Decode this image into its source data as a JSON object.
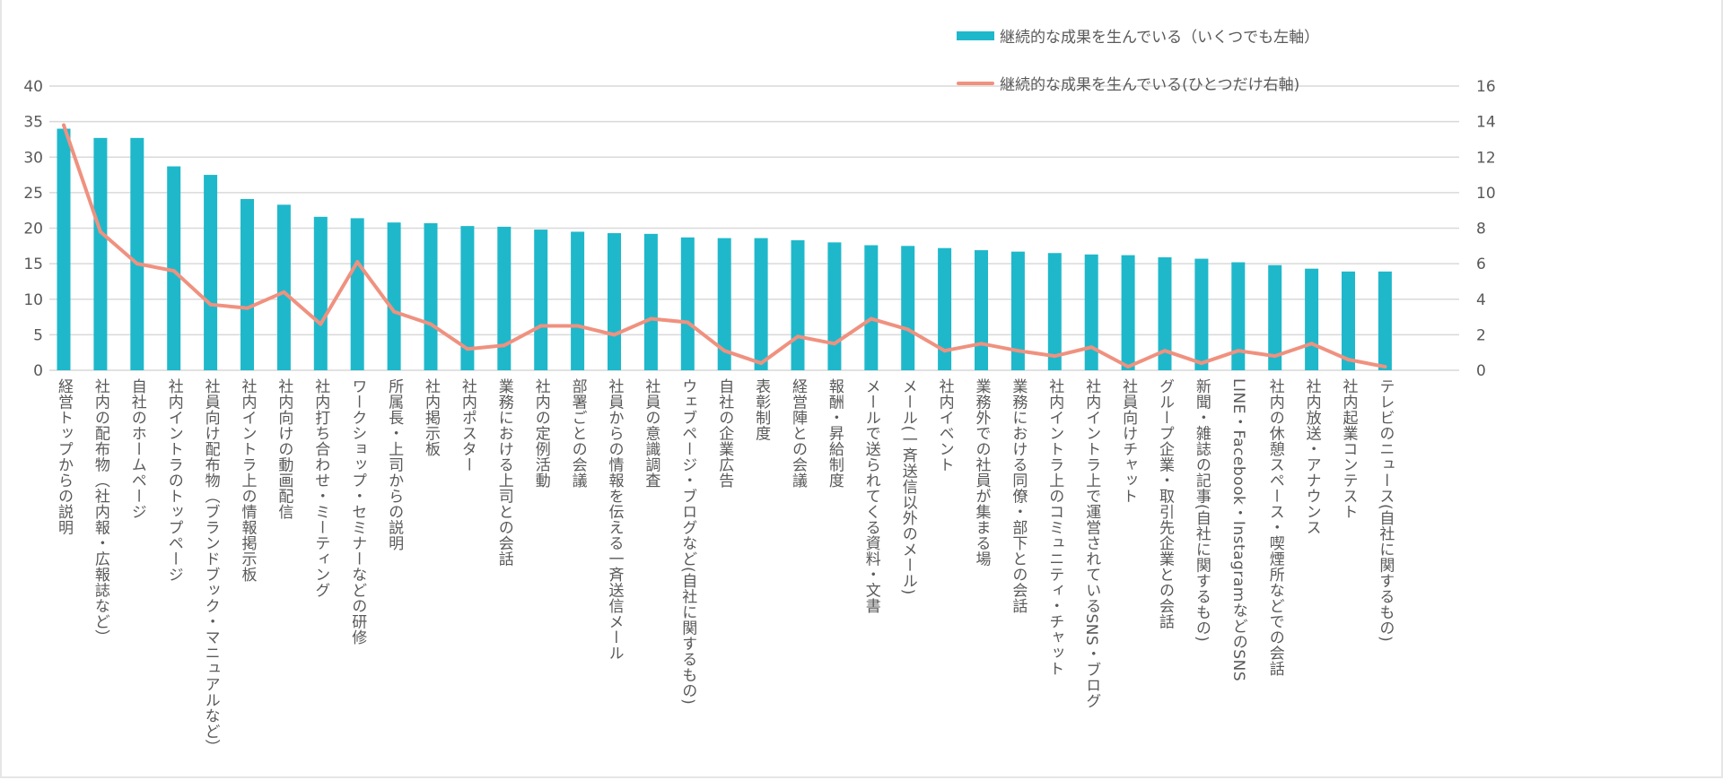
{
  "chart_data": {
    "type": "bar+line",
    "title": "",
    "categories": [
      "経営トップからの説明",
      "社内の配布物（社内報・広報誌など）",
      "自社のホームページ",
      "社内イントラのトップページ",
      "社員向け配布物（ブランドブック・マニュアルなど）",
      "社内イントラ上の情報掲示板",
      "社内向けの動画配信",
      "社内打ち合わせ・ミーティング",
      "ワークショップ・セミナーなどの研修",
      "所属長・上司からの説明",
      "社内掲示板",
      "社内ポスター",
      "業務における上司との会話",
      "社内の定例活動",
      "部署ごとの会議",
      "社員からの情報を伝える一斉送信メール",
      "社員の意識調査",
      "ウェブページ・ブログなど(自社に関するもの)",
      "自社の企業広告",
      "表彰制度",
      "経営陣との会議",
      "報酬・昇給制度",
      "メールで送られてくる資料・文書",
      "メール(一斉送信以外のメール)",
      "社内イベント",
      "業務外での社員が集まる場",
      "業務における同僚・部下との会話",
      "社内イントラ上のコミュニティ・チャット",
      "社内イントラ上で運営されているSNS・ブログ",
      "社員向けチャット",
      "グループ企業・取引先企業との会話",
      "新聞・雑誌の記事(自社に関するもの)",
      "LINE・Facebook・InstagramなどのSNS",
      "社内の休憩スペース・喫煙所などでの会話",
      "社内放送・アナウンス",
      "社内起業コンテスト",
      "テレビのニュース(自社に関するもの)"
    ],
    "series": [
      {
        "name": "継続的な成果を生んでいる（いくつでも左軸）",
        "type": "bar",
        "axis": "left",
        "color": "#1fb8cb",
        "values": [
          34.0,
          32.7,
          32.7,
          28.7,
          27.5,
          24.1,
          23.3,
          21.6,
          21.4,
          20.8,
          20.7,
          20.3,
          20.2,
          19.8,
          19.5,
          19.3,
          19.2,
          18.7,
          18.6,
          18.6,
          18.3,
          18.0,
          17.6,
          17.5,
          17.2,
          16.9,
          16.7,
          16.5,
          16.3,
          16.2,
          15.9,
          15.7,
          15.2,
          14.8,
          14.3,
          13.9,
          13.9
        ]
      },
      {
        "name": "継続的な成果を生んでいる(ひとつだけ右軸)",
        "type": "line",
        "axis": "right",
        "color": "#f0917f",
        "values": [
          13.8,
          7.8,
          6.0,
          5.6,
          3.7,
          3.5,
          4.4,
          2.6,
          6.1,
          3.3,
          2.6,
          1.2,
          1.4,
          2.5,
          2.5,
          2.0,
          2.9,
          2.7,
          1.1,
          0.4,
          1.9,
          1.5,
          2.9,
          2.3,
          1.1,
          1.5,
          1.1,
          0.8,
          1.3,
          0.2,
          1.1,
          0.4,
          1.1,
          0.8,
          1.5,
          0.6,
          0.2
        ]
      }
    ],
    "y_left": {
      "range": [
        0,
        40
      ],
      "ticks": [
        "0",
        "5",
        "10",
        "15",
        "20",
        "25",
        "30",
        "35",
        "40"
      ]
    },
    "y_right": {
      "range": [
        0,
        16
      ],
      "ticks": [
        "0",
        "2",
        "4",
        "6",
        "8",
        "10",
        "12",
        "14",
        "16"
      ]
    },
    "grid": true,
    "legend_position": "top-right",
    "xlabel": "",
    "ylabel": ""
  }
}
